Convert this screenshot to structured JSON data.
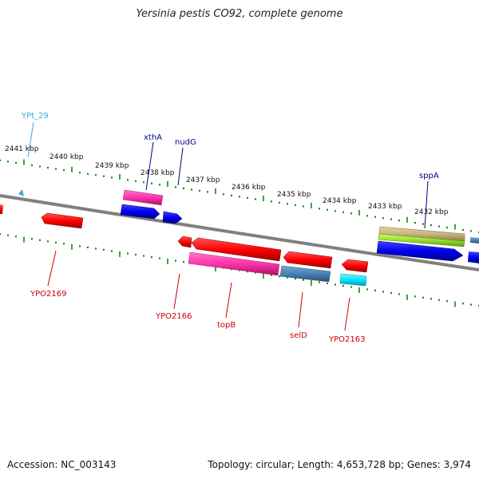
{
  "title": "Yersinia pestis CO92, complete genome",
  "footer": {
    "accession": "Accession: NC_003143",
    "summary": "Topology: circular; Length: 4,653,728 bp; Genes: 3,974"
  },
  "colors": {
    "backbone": "#808080",
    "upper_label": "#00008b",
    "lower_label": "#cc0000",
    "trna_label": "#3fa9d6",
    "ticks": "#118811",
    "cds_forward": "#0000ff",
    "cds_reverse": "#ff0000",
    "gene_pink": "#ff33aa",
    "steel": "#4682b4",
    "cyan": "#00e5ff",
    "khaki": "#c8b57c",
    "lime": "#99dd33"
  },
  "scale": {
    "ticks": [
      "2441 kbp",
      "2440 kbp",
      "2439 kbp",
      "2438 kbp",
      "2437 kbp",
      "2436 kbp",
      "2435 kbp",
      "2434 kbp",
      "2433 kbp",
      "2432 kbp"
    ]
  },
  "features": {
    "upper": [
      {
        "name": "YPt_29",
        "color": "#3fa9d6"
      },
      {
        "name": "xthA",
        "color": "#00008b"
      },
      {
        "name": "nudG",
        "color": "#00008b"
      },
      {
        "name": "sppA",
        "color": "#00008b"
      }
    ],
    "lower": [
      {
        "name": "YPO2169"
      },
      {
        "name": "YPO2166"
      },
      {
        "name": "topB"
      },
      {
        "name": "selD"
      },
      {
        "name": "YPO2163"
      }
    ]
  }
}
